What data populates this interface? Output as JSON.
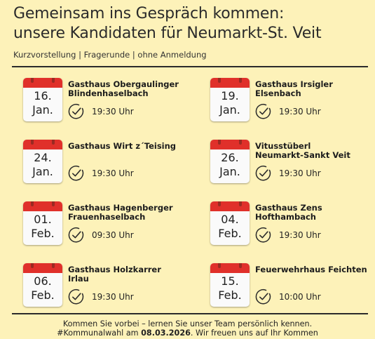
{
  "header": {
    "title_line1": "Gemeinsam ins Gespräch kommen:",
    "title_line2": "unsere Kandidaten für Neumarkt-St. Veit",
    "subtitle": "Kurzvorstellung | Fragerunde | ohne Anmeldung"
  },
  "events": [
    {
      "day": "16.",
      "month": "Jan.",
      "venue_line1": "Gasthaus Obergaulinger",
      "venue_line2": "Blindenhaselbach",
      "time": "19:30 Uhr",
      "icon": "calendar-icon"
    },
    {
      "day": "19.",
      "month": "Jan.",
      "venue_line1": "Gasthaus Irsigler",
      "venue_line2": "Elsenbach",
      "time": "19:30 Uhr",
      "icon": "calendar-icon"
    },
    {
      "day": "24.",
      "month": "Jan.",
      "venue_line1": "Gasthaus Wirt z´Teising",
      "venue_line2": "",
      "time": "19:30 Uhr",
      "icon": "calendar-icon"
    },
    {
      "day": "26.",
      "month": "Jan.",
      "venue_line1": "Vitusstüberl",
      "venue_line2": "Neumarkt-Sankt Veit",
      "time": "19:30 Uhr",
      "icon": "calendar-icon"
    },
    {
      "day": "01.",
      "month": "Feb.",
      "venue_line1": "Gasthaus Hagenberger",
      "venue_line2": "Frauenhaselbach",
      "time": "09:30 Uhr",
      "icon": "calendar-icon"
    },
    {
      "day": "04.",
      "month": "Feb.",
      "venue_line1": "Gasthaus Zens",
      "venue_line2": "Hofthambach",
      "time": "19:30 Uhr",
      "icon": "calendar-icon"
    },
    {
      "day": "06.",
      "month": "Feb.",
      "venue_line1": "Gasthaus Holzkarrer",
      "venue_line2": "Irlau",
      "time": "19:30 Uhr",
      "icon": "calendar-icon"
    },
    {
      "day": "15.",
      "month": "Feb.",
      "venue_line1": "Feuerwehrhaus Feichten",
      "venue_line2": "",
      "time": "10:00 Uhr",
      "icon": "calendar-icon"
    }
  ],
  "footer": {
    "line1": "Kommen Sie vorbei – lernen Sie unser Team persönlich kennen.",
    "line2_prefix": "#Kommunalwahl am ",
    "line2_date": "08.03.2026",
    "line2_suffix": ". Wir freuen uns auf Ihr Kommen"
  },
  "colors": {
    "background": "#fdf2b9",
    "calendar_header": "#e0302a",
    "text": "#222222"
  }
}
